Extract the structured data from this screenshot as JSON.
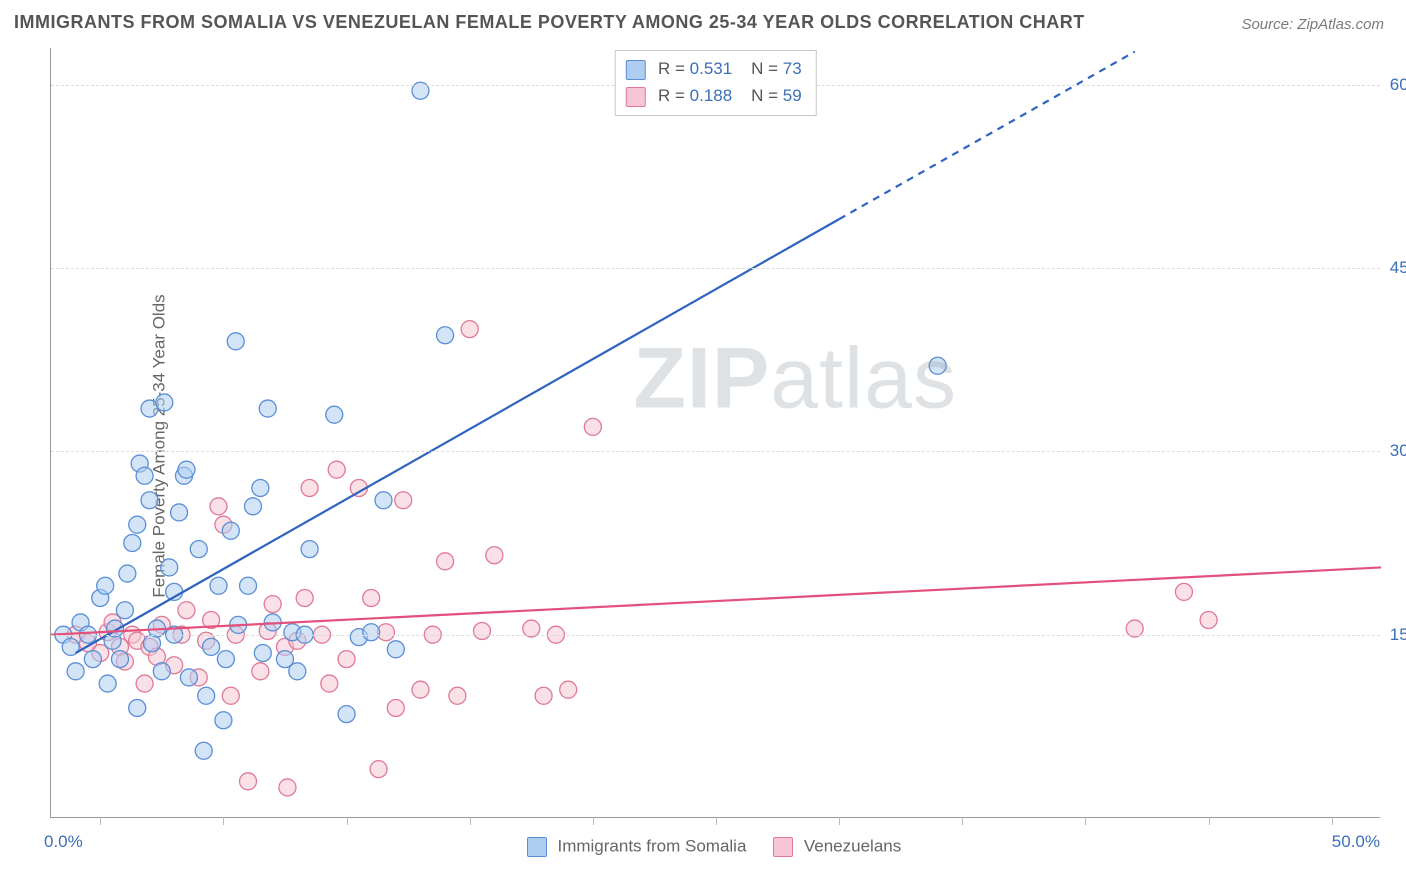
{
  "title": "IMMIGRANTS FROM SOMALIA VS VENEZUELAN FEMALE POVERTY AMONG 25-34 YEAR OLDS CORRELATION CHART",
  "source": "Source: ZipAtlas.com",
  "ylabel": "Female Poverty Among 25-34 Year Olds",
  "watermark_bold": "ZIP",
  "watermark_rest": "atlas",
  "chart": {
    "type": "scatter-with-regression",
    "background_color": "#ffffff",
    "grid_color": "#dcdcdc",
    "axis_color": "#999999",
    "tick_label_color": "#3b6fb6",
    "label_color": "#666666",
    "title_color": "#555555",
    "title_fontsize": 18,
    "label_fontsize": 17,
    "tick_fontsize": 17,
    "xlim": [
      -2,
      52
    ],
    "ylim": [
      0,
      63
    ],
    "xlim_labels": {
      "min": "0.0%",
      "max": "50.0%"
    },
    "y_gridlines": [
      15,
      30,
      45,
      60
    ],
    "y_gridline_labels": [
      "15.0%",
      "30.0%",
      "45.0%",
      "60.0%"
    ],
    "x_tick_positions": [
      0,
      5,
      10,
      15,
      20,
      25,
      30,
      35,
      40,
      45,
      50
    ],
    "marker_radius": 8.5,
    "marker_opacity": 0.55,
    "marker_stroke_width": 1.3,
    "line_width": 2.2,
    "series": [
      {
        "id": "somalia",
        "label": "Immigrants from Somalia",
        "fill": "#aecdf0",
        "stroke": "#5a8fd6",
        "line_color": "#2f63c0",
        "R": "0.531",
        "N": "73",
        "regression": {
          "x1": -1,
          "y1": 13.5,
          "x2": 30,
          "y2": 49,
          "extend_x2": 42,
          "extend_y2": 62.7,
          "dashed_extension": true
        },
        "points": [
          [
            -1.5,
            15
          ],
          [
            -1.2,
            14
          ],
          [
            -1,
            12
          ],
          [
            -0.8,
            16
          ],
          [
            -0.5,
            15
          ],
          [
            -0.3,
            13
          ],
          [
            0,
            18
          ],
          [
            0.2,
            19
          ],
          [
            0.3,
            11
          ],
          [
            0.5,
            14.5
          ],
          [
            0.6,
            15.5
          ],
          [
            0.8,
            13
          ],
          [
            1,
            17
          ],
          [
            1.1,
            20
          ],
          [
            1.3,
            22.5
          ],
          [
            1.5,
            24
          ],
          [
            1.5,
            9
          ],
          [
            1.6,
            29
          ],
          [
            1.8,
            28
          ],
          [
            2,
            26
          ],
          [
            2,
            33.5
          ],
          [
            2.1,
            14.3
          ],
          [
            2.3,
            15.5
          ],
          [
            2.5,
            12
          ],
          [
            2.6,
            34
          ],
          [
            2.8,
            20.5
          ],
          [
            3,
            18.5
          ],
          [
            3,
            15
          ],
          [
            3.2,
            25
          ],
          [
            3.4,
            28
          ],
          [
            3.5,
            28.5
          ],
          [
            3.6,
            11.5
          ],
          [
            4,
            22
          ],
          [
            4.2,
            5.5
          ],
          [
            4.3,
            10
          ],
          [
            4.5,
            14
          ],
          [
            4.8,
            19
          ],
          [
            5,
            8
          ],
          [
            5.1,
            13
          ],
          [
            5.3,
            23.5
          ],
          [
            5.5,
            39
          ],
          [
            5.6,
            15.8
          ],
          [
            6,
            19
          ],
          [
            6.2,
            25.5
          ],
          [
            6.5,
            27
          ],
          [
            6.6,
            13.5
          ],
          [
            6.8,
            33.5
          ],
          [
            7,
            16
          ],
          [
            7.5,
            13
          ],
          [
            7.8,
            15.2
          ],
          [
            8,
            12
          ],
          [
            8.3,
            15
          ],
          [
            8.5,
            22
          ],
          [
            9.5,
            33
          ],
          [
            10,
            8.5
          ],
          [
            10.5,
            14.8
          ],
          [
            11,
            15.2
          ],
          [
            11.5,
            26
          ],
          [
            12,
            13.8
          ],
          [
            13,
            59.5
          ],
          [
            14,
            39.5
          ],
          [
            34,
            37
          ]
        ]
      },
      {
        "id": "venezuelans",
        "label": "Venezuelans",
        "fill": "#f6c6d4",
        "stroke": "#e07998",
        "line_color": "#e3507c",
        "R": "0.188",
        "N": "59",
        "regression": {
          "x1": -2,
          "y1": 15,
          "x2": 52,
          "y2": 20.5,
          "dashed_extension": false
        },
        "points": [
          [
            -1,
            15
          ],
          [
            -0.5,
            14.3
          ],
          [
            0,
            13.5
          ],
          [
            0.3,
            15.2
          ],
          [
            0.5,
            16
          ],
          [
            0.8,
            14
          ],
          [
            1,
            12.8
          ],
          [
            1.3,
            15
          ],
          [
            1.5,
            14.5
          ],
          [
            1.8,
            11
          ],
          [
            2,
            14
          ],
          [
            2.3,
            13.2
          ],
          [
            2.5,
            15.8
          ],
          [
            3,
            12.5
          ],
          [
            3.3,
            15
          ],
          [
            3.5,
            17
          ],
          [
            4,
            11.5
          ],
          [
            4.3,
            14.5
          ],
          [
            4.5,
            16.2
          ],
          [
            4.8,
            25.5
          ],
          [
            5,
            24
          ],
          [
            5.3,
            10
          ],
          [
            5.5,
            15
          ],
          [
            6,
            3
          ],
          [
            6.5,
            12
          ],
          [
            6.8,
            15.3
          ],
          [
            7,
            17.5
          ],
          [
            7.5,
            14
          ],
          [
            7.6,
            2.5
          ],
          [
            8,
            14.5
          ],
          [
            8.3,
            18
          ],
          [
            8.5,
            27
          ],
          [
            9,
            15
          ],
          [
            9.3,
            11
          ],
          [
            9.6,
            28.5
          ],
          [
            10,
            13
          ],
          [
            10.5,
            27
          ],
          [
            11,
            18
          ],
          [
            11.3,
            4
          ],
          [
            11.6,
            15.2
          ],
          [
            12,
            9
          ],
          [
            12.3,
            26
          ],
          [
            13,
            10.5
          ],
          [
            13.5,
            15
          ],
          [
            14,
            21
          ],
          [
            14.5,
            10
          ],
          [
            15,
            40
          ],
          [
            15.5,
            15.3
          ],
          [
            16,
            21.5
          ],
          [
            17.5,
            15.5
          ],
          [
            18,
            10
          ],
          [
            18.5,
            15
          ],
          [
            19,
            10.5
          ],
          [
            20,
            32
          ],
          [
            42,
            15.5
          ],
          [
            44,
            18.5
          ],
          [
            45,
            16.2
          ]
        ]
      }
    ],
    "top_legend": {
      "rows": [
        {
          "swatch_fill": "#aecdf0",
          "swatch_stroke": "#5a8fd6",
          "r_label": "R =",
          "r_val": "0.531",
          "n_label": "N =",
          "n_val": "73"
        },
        {
          "swatch_fill": "#f6c6d4",
          "swatch_stroke": "#e07998",
          "r_label": "R =",
          "r_val": "0.188",
          "n_label": "N =",
          "n_val": "59"
        }
      ]
    }
  }
}
